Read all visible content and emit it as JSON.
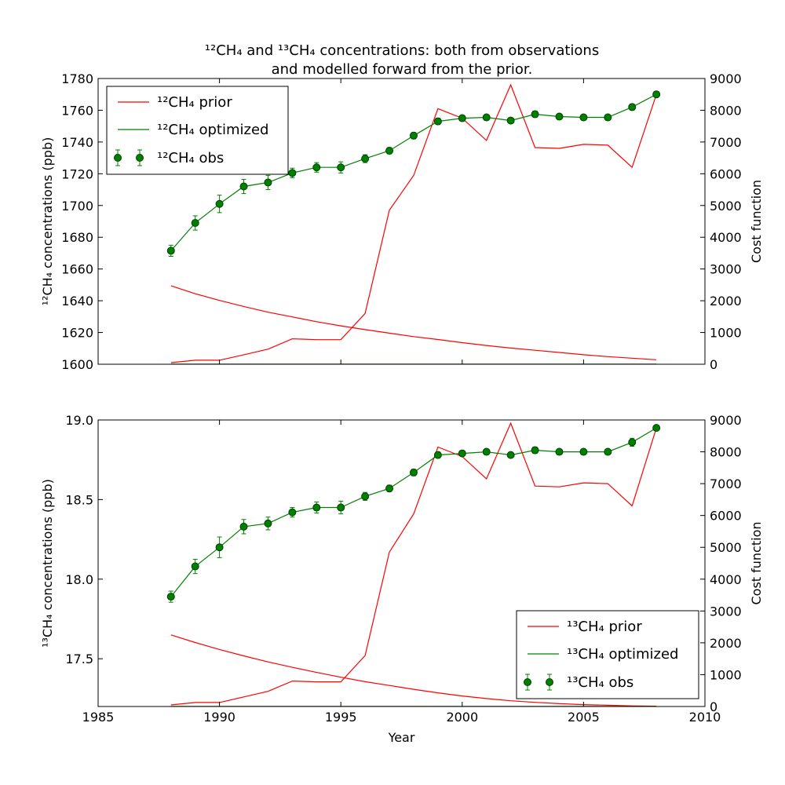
{
  "title_lines": [
    "¹²CH₄ and ¹³CH₄ concentrations: both from observations",
    "and modelled forward from the prior."
  ],
  "colors": {
    "prior": "#ff0000",
    "optimized": "#008000",
    "obs_face": "#008000",
    "obs_edge": "#004000"
  },
  "chart_data": [
    {
      "type": "line",
      "xlabel": "",
      "ylabel": "¹²CH₄ concentrations (ppb)",
      "y2label": "Cost function",
      "xlim": [
        1985,
        2010
      ],
      "ylim": [
        1600,
        1780
      ],
      "y2lim": [
        0,
        9000
      ],
      "xticks": [
        1985,
        1990,
        1995,
        2000,
        2005,
        2010
      ],
      "yticks": [
        1600,
        1620,
        1640,
        1660,
        1680,
        1700,
        1720,
        1740,
        1760,
        1780
      ],
      "y2ticks": [
        0,
        1000,
        2000,
        3000,
        4000,
        5000,
        6000,
        7000,
        8000,
        9000
      ],
      "legend_position": "upper-left",
      "legend": [
        "¹²CH₄ prior",
        "¹²CH₄ optimized",
        "¹²CH₄ obs"
      ],
      "x": [
        1988,
        1989,
        1990,
        1991,
        1992,
        1993,
        1994,
        1995,
        1996,
        1997,
        1998,
        1999,
        2000,
        2001,
        2002,
        2003,
        2004,
        2005,
        2006,
        2007,
        2008
      ],
      "series": [
        {
          "name": "¹²CH₄ prior",
          "axis": "left",
          "role": "prior",
          "values": [
            1601,
            1602.5,
            1602.5,
            1606,
            1609.5,
            1616,
            1615.5,
            1615.5,
            1632,
            1697,
            1719,
            1761,
            1755,
            1741,
            1776,
            1736.5,
            1736,
            1738.5,
            1738,
            1724,
            1770
          ]
        },
        {
          "name": "¹²CH₄ optimized",
          "axis": "left",
          "role": "optimized",
          "values": [
            1671.5,
            1689,
            1701,
            1712,
            1714.5,
            1720.5,
            1724,
            1724,
            1729.5,
            1734.5,
            1744,
            1753,
            1755,
            1755.5,
            1753.5,
            1757.5,
            1756,
            1755.5,
            1755.5,
            1762,
            1770
          ]
        },
        {
          "name": "¹²CH₄ obs",
          "axis": "left",
          "role": "obs",
          "values": [
            1671.5,
            1689,
            1701,
            1712,
            1714.5,
            1720.5,
            1724,
            1724,
            1729.5,
            1734.5,
            1744,
            1753,
            1755,
            1755.5,
            1753.5,
            1757.5,
            1756,
            1755.5,
            1755.5,
            1762,
            1770
          ],
          "errors": [
            3.5,
            4.5,
            5.5,
            4.5,
            4.5,
            3,
            3,
            3.5,
            2.5,
            2,
            2,
            2,
            1.5,
            1.5,
            1.5,
            2,
            1.5,
            1.5,
            1.5,
            2,
            1.5
          ]
        },
        {
          "name": "cost function (a)",
          "axis": "right",
          "role": "cost_a",
          "values": [
            2470,
            2220,
            2010,
            1820,
            1640,
            1490,
            1340,
            1210,
            1090,
            980,
            870,
            780,
            680,
            590,
            510,
            440,
            370,
            300,
            240,
            190,
            140
          ]
        },
        {
          "name": "cost function (b)",
          "axis": "right",
          "role": "cost_b",
          "values": [
            5,
            5,
            5,
            5,
            5,
            5,
            5,
            5,
            5,
            5,
            5,
            5,
            5,
            5,
            5,
            5,
            5,
            5,
            5,
            5,
            5
          ]
        }
      ]
    },
    {
      "type": "line",
      "xlabel": "Year",
      "ylabel": "¹³CH₄ concentrations (ppb)",
      "y2label": "Cost function",
      "xlim": [
        1985,
        2010
      ],
      "ylim": [
        17.2,
        19.0
      ],
      "y2lim": [
        0,
        9000
      ],
      "xticks": [
        1985,
        1990,
        1995,
        2000,
        2005,
        2010
      ],
      "yticks": [
        17.5,
        18.0,
        18.5,
        19.0
      ],
      "ytick_labels": [
        "17.5",
        "18.0",
        "18.5",
        "19.0"
      ],
      "y2ticks": [
        0,
        1000,
        2000,
        3000,
        4000,
        5000,
        6000,
        7000,
        8000,
        9000
      ],
      "legend_position": "lower-right",
      "legend": [
        "¹³CH₄ prior",
        "¹³CH₄ optimized",
        "¹³CH₄ obs"
      ],
      "x": [
        1988,
        1989,
        1990,
        1991,
        1992,
        1993,
        1994,
        1995,
        1996,
        1997,
        1998,
        1999,
        2000,
        2001,
        2002,
        2003,
        2004,
        2005,
        2006,
        2007,
        2008
      ],
      "series": [
        {
          "name": "¹³CH₄ prior",
          "axis": "left",
          "role": "prior",
          "values": [
            17.21,
            17.225,
            17.225,
            17.26,
            17.295,
            17.36,
            17.355,
            17.355,
            17.52,
            18.17,
            18.41,
            18.83,
            18.77,
            18.63,
            18.98,
            18.585,
            18.58,
            18.605,
            18.6,
            18.46,
            18.95
          ]
        },
        {
          "name": "¹³CH₄ optimized",
          "axis": "left",
          "role": "optimized",
          "values": [
            17.89,
            18.08,
            18.2,
            18.33,
            18.35,
            18.42,
            18.45,
            18.45,
            18.52,
            18.57,
            18.67,
            18.78,
            18.79,
            18.8,
            18.78,
            18.81,
            18.8,
            18.8,
            18.8,
            18.86,
            18.95
          ]
        },
        {
          "name": "¹³CH₄ obs",
          "axis": "left",
          "role": "obs",
          "values": [
            17.89,
            18.08,
            18.2,
            18.33,
            18.35,
            18.42,
            18.45,
            18.45,
            18.52,
            18.57,
            18.67,
            18.78,
            18.79,
            18.8,
            18.78,
            18.81,
            18.8,
            18.8,
            18.8,
            18.86,
            18.95
          ],
          "errors": [
            0.035,
            0.045,
            0.065,
            0.045,
            0.04,
            0.03,
            0.035,
            0.04,
            0.025,
            0.02,
            0.02,
            0.02,
            0.015,
            0.015,
            0.015,
            0.02,
            0.015,
            0.015,
            0.015,
            0.025,
            0.015
          ]
        },
        {
          "name": "cost function (a)",
          "axis": "right",
          "role": "cost_a",
          "values": [
            2250,
            2010,
            1790,
            1590,
            1400,
            1230,
            1070,
            920,
            780,
            660,
            540,
            430,
            330,
            250,
            180,
            130,
            90,
            60,
            40,
            20,
            10
          ]
        },
        {
          "name": "cost function (b)",
          "axis": "right",
          "role": "cost_b",
          "values": [
            5,
            5,
            5,
            5,
            5,
            5,
            5,
            5,
            5,
            5,
            5,
            5,
            5,
            5,
            5,
            5,
            5,
            5,
            5,
            5,
            5
          ]
        }
      ]
    }
  ]
}
